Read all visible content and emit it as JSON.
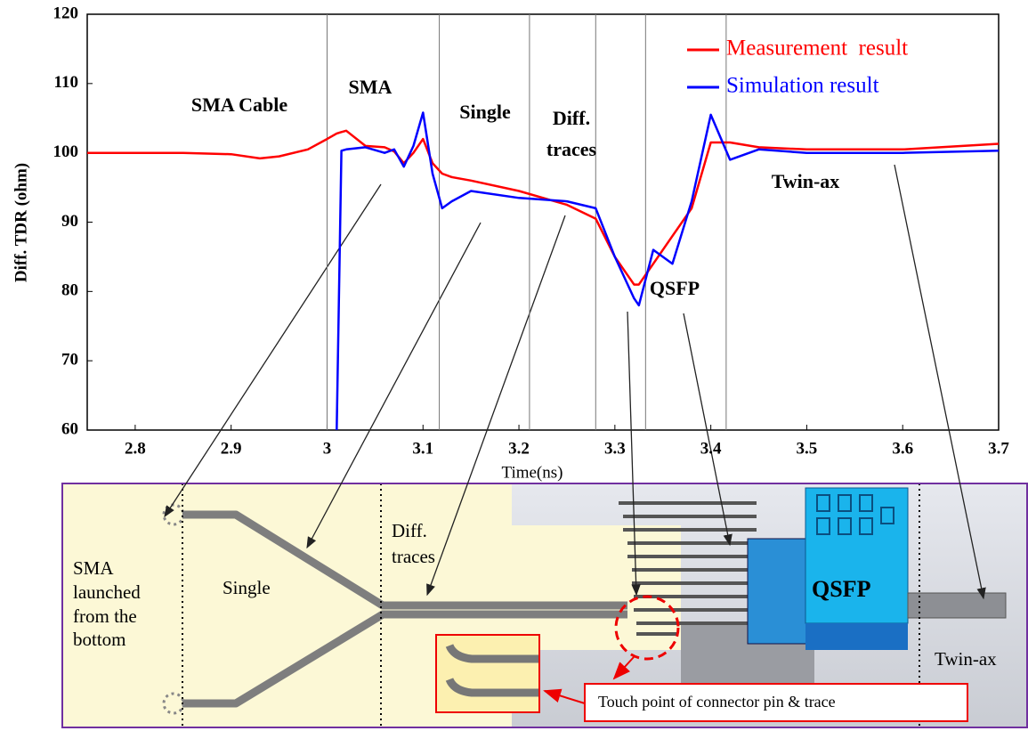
{
  "chart_data": {
    "type": "line",
    "x_label": "Time(ns)",
    "y_label": "Diff. TDR (ohm)",
    "x": [
      2.75,
      2.8,
      2.85,
      2.9,
      2.93,
      2.95,
      2.98,
      3.0,
      3.01,
      3.015,
      3.02,
      3.04,
      3.06,
      3.07,
      3.08,
      3.09,
      3.1,
      3.11,
      3.12,
      3.13,
      3.15,
      3.2,
      3.25,
      3.28,
      3.3,
      3.32,
      3.325,
      3.34,
      3.36,
      3.38,
      3.4,
      3.42,
      3.45,
      3.5,
      3.6,
      3.7
    ],
    "series": [
      {
        "name": "Measurement  result",
        "color": "#ff0000",
        "values": [
          100,
          100,
          100,
          99.8,
          99.2,
          99.5,
          100.5,
          102,
          102.8,
          103,
          103.2,
          101,
          100.8,
          100.2,
          98.5,
          100,
          102,
          98.5,
          97,
          96.5,
          96,
          94.5,
          92.5,
          90.5,
          85,
          81,
          81,
          84,
          88,
          92,
          101.5,
          101.5,
          100.8,
          100.5,
          100.5,
          101.3
        ]
      },
      {
        "name": "Simulation result",
        "color": "#0000ff",
        "values": [
          null,
          null,
          null,
          null,
          null,
          null,
          null,
          null,
          60,
          100.3,
          100.5,
          100.8,
          100,
          100.5,
          98,
          101,
          105.8,
          97,
          92,
          93,
          94.5,
          93.5,
          93,
          92,
          85,
          79,
          78,
          86,
          84,
          93,
          105.5,
          99,
          100.5,
          100,
          100,
          100.3
        ]
      }
    ],
    "xlim": [
      2.75,
      3.7
    ],
    "ylim": [
      60,
      120
    ],
    "xticks": [
      2.8,
      2.9,
      3,
      3.1,
      3.2,
      3.3,
      3.4,
      3.5,
      3.6,
      3.7
    ],
    "yticks": [
      60,
      70,
      80,
      90,
      100,
      110,
      120
    ],
    "grid": false,
    "legend": "upper right",
    "region_boundaries": [
      3.0,
      3.117,
      3.211,
      3.28,
      3.332,
      3.416
    ],
    "annotations": [
      "SMA Cable",
      "SMA",
      "Single",
      "Diff.",
      "traces",
      "QSFP",
      "Twin-ax"
    ]
  },
  "diagram": {
    "sma_lines": [
      "SMA",
      "launched",
      "from the",
      "bottom"
    ],
    "single": "Single",
    "diff_lines": [
      "Diff.",
      "traces"
    ],
    "qsfp": "QSFP",
    "twinax": "Twin-ax",
    "callout": "Touch point of connector pin & trace"
  }
}
